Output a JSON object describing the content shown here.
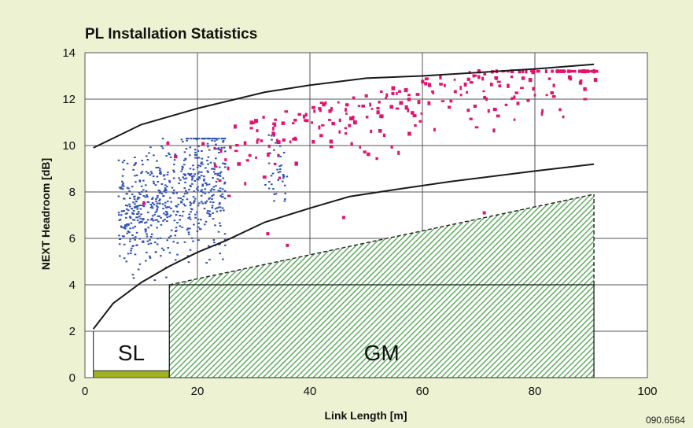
{
  "chart_data": {
    "type": "scatter",
    "title": "PL Installation Statistics",
    "xlabel": "Link Length [m]",
    "ylabel": "NEXT Headroom [dB]",
    "xlim": [
      0,
      100
    ],
    "ylim": [
      0,
      14
    ],
    "xticks": [
      0,
      20,
      40,
      60,
      80,
      100
    ],
    "yticks": [
      0,
      2,
      4,
      6,
      8,
      10,
      12,
      14
    ],
    "grid": true,
    "lines": [
      {
        "x": [
          1.5,
          10,
          20,
          32,
          40,
          50,
          60,
          70,
          80,
          90.5
        ],
        "y": [
          9.9,
          10.9,
          11.6,
          12.3,
          12.6,
          12.9,
          13.0,
          13.15,
          13.3,
          13.5
        ]
      },
      {
        "x": [
          1.5,
          5,
          10,
          15,
          20,
          25,
          32,
          40,
          47,
          55,
          65,
          80,
          90.5
        ],
        "y": [
          2.1,
          3.2,
          4.1,
          4.8,
          5.4,
          5.9,
          6.7,
          7.3,
          7.8,
          8.1,
          8.45,
          8.9,
          9.2
        ]
      }
    ],
    "regions": [
      {
        "label": "SL",
        "x": [
          1.5,
          15
        ],
        "y": [
          0,
          0.3
        ],
        "style": "solid",
        "color": "#9fb221"
      },
      {
        "label": "GM",
        "x": [
          15,
          90.5
        ],
        "y": [
          0,
          4
        ],
        "top_right": 7.9,
        "style": "hatched",
        "color": "#5fae5f"
      }
    ],
    "scatter_series": [
      {
        "color": "#2e50b5",
        "x_range": [
          6,
          25
        ],
        "y_range": [
          4.2,
          10.3
        ],
        "count": 650
      },
      {
        "color": "#e0146f",
        "x_range": [
          12,
          91
        ],
        "y_range": [
          6.5,
          13.2
        ],
        "count": 260
      }
    ]
  },
  "code": "090.6564",
  "colors": {
    "background": "#ecf2d2",
    "plot": "#ffffff",
    "blue_points": "#2e50b5",
    "magenta_points": "#e0146f",
    "sl_fill": "#9fb221",
    "gm_hatch": "#5fae5f"
  }
}
